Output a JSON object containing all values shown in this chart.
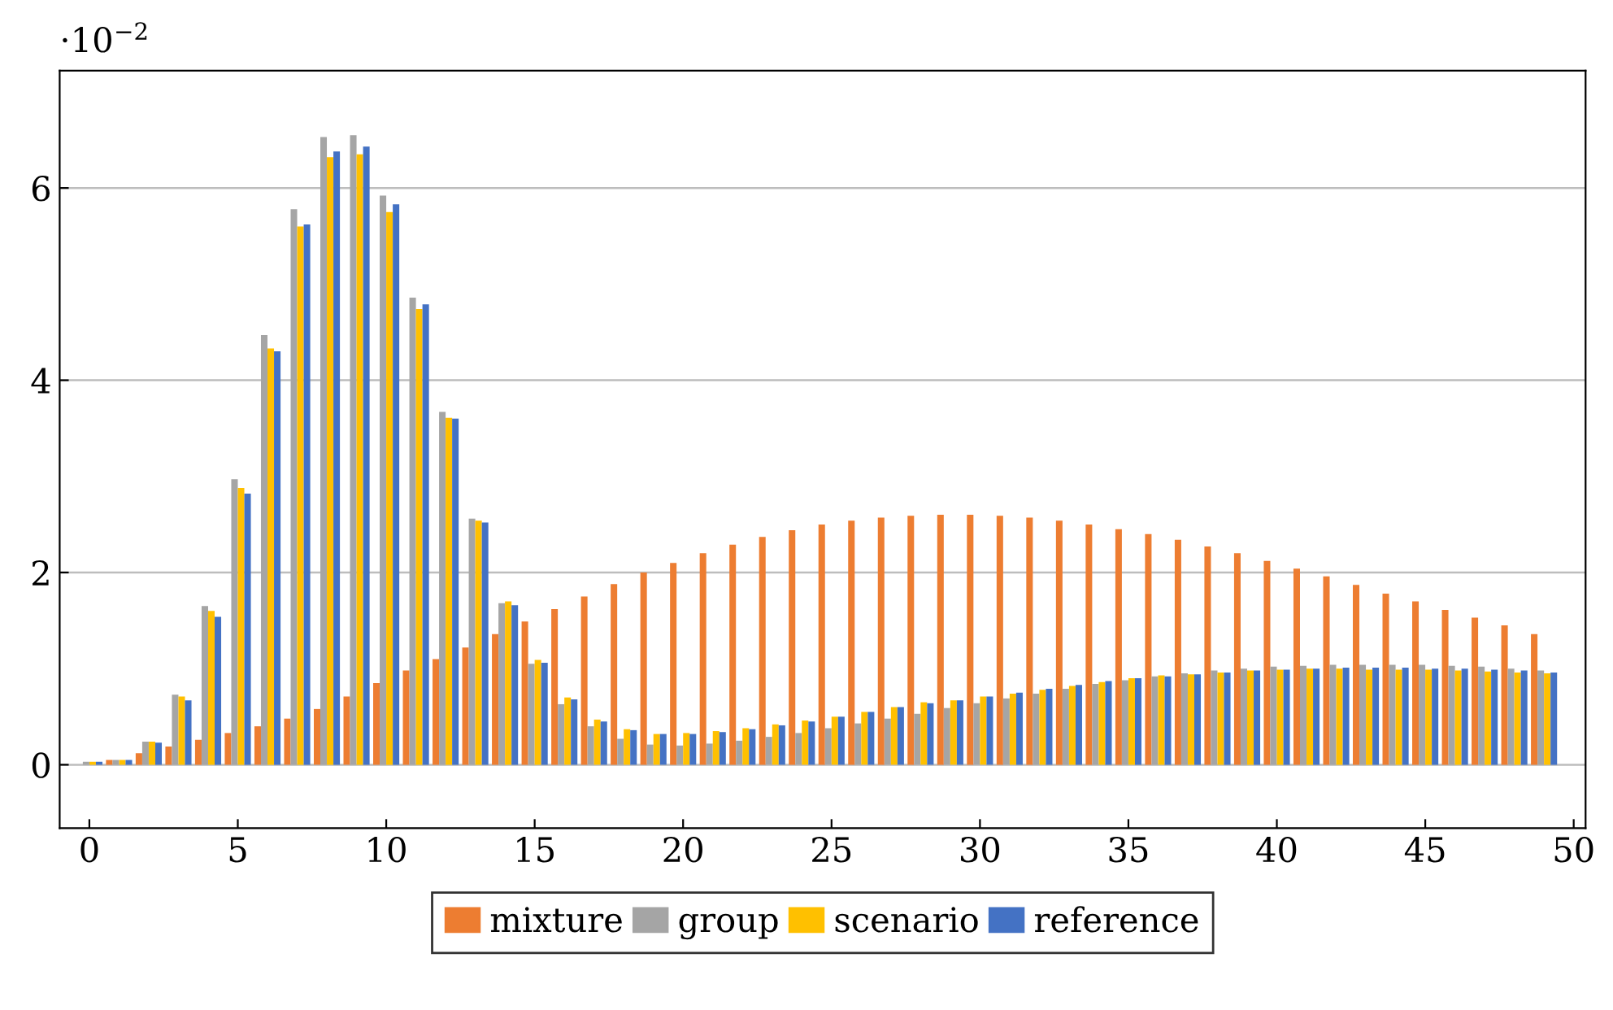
{
  "chart_data": {
    "type": "bar",
    "x": [
      0,
      1,
      2,
      3,
      4,
      5,
      6,
      7,
      8,
      9,
      10,
      11,
      12,
      13,
      14,
      15,
      16,
      17,
      18,
      19,
      20,
      21,
      22,
      23,
      24,
      25,
      26,
      27,
      28,
      29,
      30,
      31,
      32,
      33,
      34,
      35,
      36,
      37,
      38,
      39,
      40,
      41,
      42,
      43,
      44,
      45,
      46,
      47,
      48,
      49
    ],
    "series": [
      {
        "name": "mixture",
        "color": "#ed7d31",
        "values": [
          0,
          0.05,
          0.12,
          0.19,
          0.26,
          0.33,
          0.4,
          0.48,
          0.58,
          0.71,
          0.85,
          0.98,
          1.1,
          1.22,
          1.36,
          1.49,
          1.62,
          1.75,
          1.88,
          2.0,
          2.1,
          2.2,
          2.29,
          2.37,
          2.44,
          2.5,
          2.54,
          2.57,
          2.59,
          2.6,
          2.6,
          2.59,
          2.57,
          2.54,
          2.5,
          2.45,
          2.4,
          2.34,
          2.27,
          2.2,
          2.12,
          2.04,
          1.96,
          1.87,
          1.78,
          1.7,
          1.61,
          1.53,
          1.45,
          1.36
        ]
      },
      {
        "name": "group",
        "color": "#a5a5a5",
        "values": [
          0.03,
          0.05,
          0.24,
          0.73,
          1.65,
          2.97,
          4.47,
          5.78,
          6.53,
          6.55,
          5.92,
          4.86,
          3.67,
          2.56,
          1.68,
          1.05,
          0.63,
          0.4,
          0.27,
          0.21,
          0.2,
          0.22,
          0.25,
          0.29,
          0.33,
          0.38,
          0.43,
          0.48,
          0.53,
          0.59,
          0.64,
          0.69,
          0.74,
          0.79,
          0.84,
          0.88,
          0.92,
          0.95,
          0.98,
          1.0,
          1.02,
          1.03,
          1.04,
          1.04,
          1.04,
          1.04,
          1.03,
          1.02,
          1.0,
          0.98
        ]
      },
      {
        "name": "scenario",
        "color": "#ffc000",
        "values": [
          0.03,
          0.05,
          0.24,
          0.71,
          1.6,
          2.88,
          4.33,
          5.6,
          6.32,
          6.35,
          5.75,
          4.74,
          3.61,
          2.54,
          1.7,
          1.09,
          0.7,
          0.47,
          0.37,
          0.32,
          0.33,
          0.35,
          0.38,
          0.42,
          0.46,
          0.5,
          0.55,
          0.6,
          0.65,
          0.67,
          0.71,
          0.74,
          0.78,
          0.82,
          0.86,
          0.9,
          0.93,
          0.94,
          0.96,
          0.98,
          0.99,
          1.0,
          1.0,
          0.99,
          0.99,
          0.99,
          0.98,
          0.97,
          0.96,
          0.95
        ]
      },
      {
        "name": "reference",
        "color": "#4472c4",
        "values": [
          0.03,
          0.05,
          0.23,
          0.67,
          1.54,
          2.82,
          4.3,
          5.62,
          6.38,
          6.43,
          5.83,
          4.79,
          3.6,
          2.52,
          1.66,
          1.06,
          0.68,
          0.45,
          0.36,
          0.32,
          0.32,
          0.34,
          0.37,
          0.41,
          0.45,
          0.5,
          0.55,
          0.6,
          0.64,
          0.67,
          0.71,
          0.75,
          0.79,
          0.83,
          0.87,
          0.9,
          0.92,
          0.94,
          0.96,
          0.98,
          0.99,
          1.0,
          1.01,
          1.01,
          1.01,
          1.0,
          1.0,
          0.99,
          0.98,
          0.96
        ]
      }
    ],
    "xlim": [
      -1,
      50.4
    ],
    "xticks": [
      0,
      5,
      10,
      15,
      20,
      25,
      30,
      35,
      40,
      45,
      50
    ],
    "ylim": [
      -0.66,
      7.22
    ],
    "yticks": [
      0,
      2,
      4,
      6
    ],
    "grid": "y",
    "legend": "bottom",
    "annotations": [
      "·10$^{−2}$"
    ]
  }
}
